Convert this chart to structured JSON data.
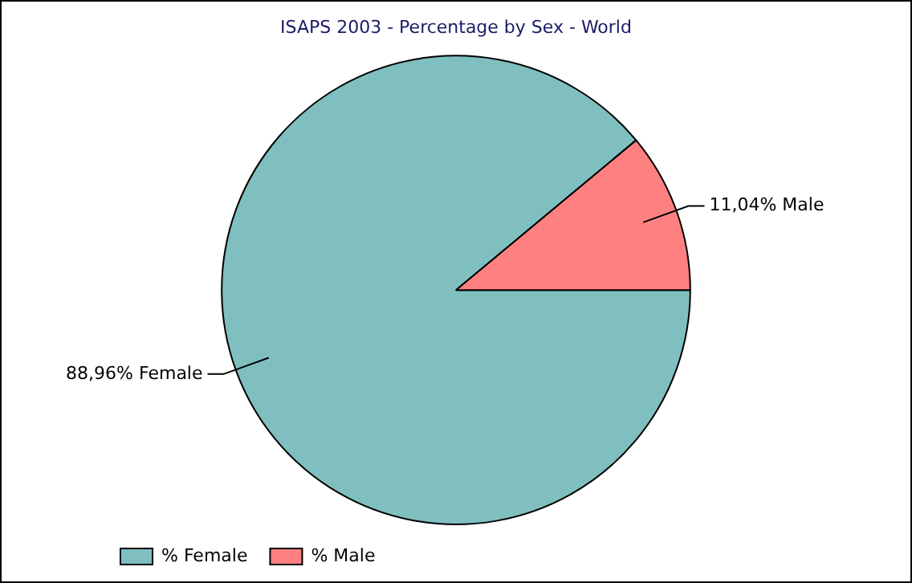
{
  "chart_data": {
    "type": "pie",
    "title": "ISAPS 2003 - Percentage by Sex - World",
    "categories": [
      "% Female",
      "% Male"
    ],
    "values": [
      88.96,
      11.04
    ],
    "colors": [
      "#80bfc0",
      "#ff8080"
    ],
    "value_labels": [
      "88,96% Female",
      "11,04% Male"
    ],
    "legend": "bottom left"
  }
}
